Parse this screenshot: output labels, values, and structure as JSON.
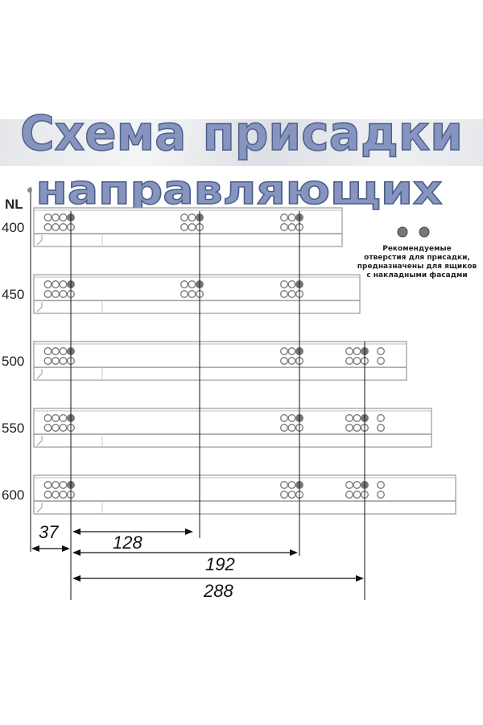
{
  "title": {
    "line1": "Схема присадки",
    "line2": "направляющих"
  },
  "axis_label": "NL",
  "rails": [
    {
      "nl": "400",
      "hole_groups_mm": [
        0,
        128,
        192
      ]
    },
    {
      "nl": "450",
      "hole_groups_mm": [
        0,
        128,
        192
      ]
    },
    {
      "nl": "500",
      "hole_groups_mm": [
        0,
        192,
        288
      ]
    },
    {
      "nl": "550",
      "hole_groups_mm": [
        0,
        192,
        288
      ]
    },
    {
      "nl": "600",
      "hole_groups_mm": [
        0,
        192,
        288
      ]
    }
  ],
  "dimensions": {
    "edge_offset": "37",
    "d1": "128",
    "d2": "192",
    "d3": "288"
  },
  "note": {
    "lines": [
      "Рекомендуемые",
      "отверстия для присадки,",
      "предназначены для ящиков",
      "с накладными фасадми"
    ]
  },
  "colors": {
    "title_fill": "#8595c0",
    "title_stroke": "#4f5f8a",
    "hole_dark": "#777777",
    "rail": "#999999"
  }
}
